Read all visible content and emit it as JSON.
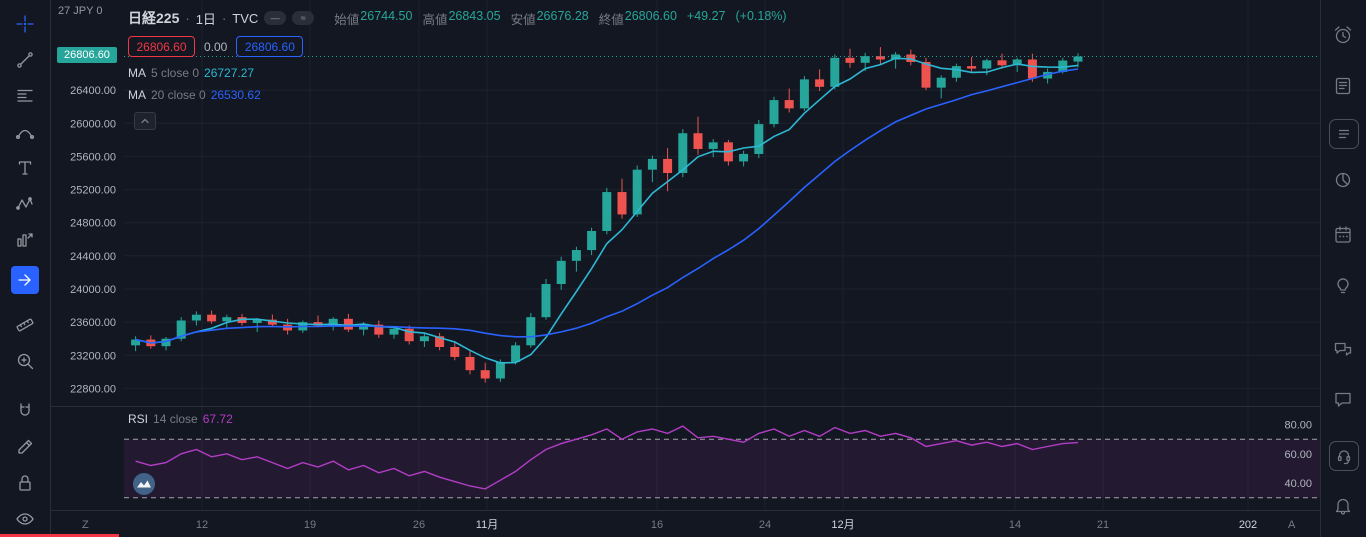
{
  "colors": {
    "background": "#131722",
    "panel_border": "#2a2e39",
    "text": "#d1d4dc",
    "muted": "#787b86",
    "up": "#26a69a",
    "down": "#ef5350",
    "accent_blue": "#2962ff",
    "sell_red": "#f23645",
    "rsi_purple": "#b33dc6"
  },
  "header": {
    "prefix": "27 JPY 0",
    "symbol": "日経225",
    "separator": "·",
    "interval": "1日",
    "exchange": "TVC",
    "pill_dash": "—",
    "pill_wave": "≈",
    "ohlc": {
      "open_label": "始値",
      "open": "26744.50",
      "high_label": "高値",
      "high": "26843.05",
      "low_label": "安値",
      "low": "26676.28",
      "close_label": "終値",
      "close": "26806.60",
      "change": "+49.27",
      "change_pct": "(+0.18%)"
    }
  },
  "trade_panel": {
    "sell_price": "26806.60",
    "spread": "0.00",
    "buy_price": "26806.60"
  },
  "indicators": {
    "ma5": {
      "name": "MA",
      "params": "5 close 0",
      "value": "26727.27"
    },
    "ma20": {
      "name": "MA",
      "params": "20 close 0",
      "value": "26530.62"
    },
    "rsi": {
      "name": "RSI",
      "params": "14 close",
      "value": "67.72"
    }
  },
  "price_axis": {
    "current": "26806.60"
  },
  "corners": {
    "left": "Z",
    "right": "A"
  },
  "chart_data": {
    "type": "candlestick",
    "title": "日経225 1日 TVC",
    "ylim": [
      22600,
      27150
    ],
    "last_close": 26806.6,
    "up_color": "#26a69a",
    "down_color": "#ef5350",
    "grid": true,
    "price_ticks": [
      {
        "value": 26400,
        "label": "26400.00"
      },
      {
        "value": 26000,
        "label": "26000.00"
      },
      {
        "value": 25600,
        "label": "25600.00"
      },
      {
        "value": 25200,
        "label": "25200.00"
      },
      {
        "value": 24800,
        "label": "24800.00"
      },
      {
        "value": 24400,
        "label": "24400.00"
      },
      {
        "value": 24000,
        "label": "24000.00"
      },
      {
        "value": 23600,
        "label": "23600.00"
      },
      {
        "value": 23200,
        "label": "23200.00"
      },
      {
        "value": 22800,
        "label": "22800.00"
      }
    ],
    "time_axis": [
      {
        "text": "12",
        "em": false
      },
      {
        "text": "19",
        "em": false
      },
      {
        "text": "26",
        "em": false
      },
      {
        "text": "11月",
        "em": true
      },
      {
        "text": "16",
        "em": false
      },
      {
        "text": "24",
        "em": false
      },
      {
        "text": "12月",
        "em": true
      },
      {
        "text": "14",
        "em": false
      },
      {
        "text": "21",
        "em": false
      },
      {
        "text": "202",
        "em": true
      }
    ],
    "candles": [
      [
        23320,
        23430,
        23250,
        23390
      ],
      [
        23390,
        23440,
        23280,
        23310
      ],
      [
        23310,
        23420,
        23260,
        23400
      ],
      [
        23400,
        23660,
        23370,
        23620
      ],
      [
        23620,
        23730,
        23560,
        23690
      ],
      [
        23690,
        23740,
        23580,
        23610
      ],
      [
        23610,
        23690,
        23530,
        23660
      ],
      [
        23660,
        23700,
        23560,
        23590
      ],
      [
        23590,
        23650,
        23480,
        23630
      ],
      [
        23630,
        23690,
        23540,
        23570
      ],
      [
        23570,
        23640,
        23450,
        23500
      ],
      [
        23500,
        23620,
        23470,
        23600
      ],
      [
        23600,
        23680,
        23540,
        23560
      ],
      [
        23560,
        23660,
        23500,
        23640
      ],
      [
        23640,
        23700,
        23480,
        23510
      ],
      [
        23510,
        23600,
        23440,
        23570
      ],
      [
        23570,
        23620,
        23410,
        23450
      ],
      [
        23450,
        23550,
        23400,
        23520
      ],
      [
        23520,
        23560,
        23330,
        23370
      ],
      [
        23370,
        23460,
        23300,
        23430
      ],
      [
        23430,
        23470,
        23260,
        23300
      ],
      [
        23300,
        23370,
        23140,
        23180
      ],
      [
        23180,
        23250,
        22970,
        23020
      ],
      [
        23020,
        23110,
        22870,
        22920
      ],
      [
        22920,
        23150,
        22880,
        23120
      ],
      [
        23120,
        23360,
        23090,
        23320
      ],
      [
        23320,
        23710,
        23290,
        23660
      ],
      [
        23660,
        24120,
        23630,
        24060
      ],
      [
        24060,
        24390,
        23990,
        24340
      ],
      [
        24340,
        24510,
        24210,
        24470
      ],
      [
        24470,
        24740,
        24410,
        24700
      ],
      [
        24700,
        25220,
        24660,
        25170
      ],
      [
        25170,
        25330,
        24850,
        24900
      ],
      [
        24900,
        25490,
        24870,
        25440
      ],
      [
        25440,
        25610,
        25290,
        25570
      ],
      [
        25570,
        25700,
        25180,
        25400
      ],
      [
        25400,
        25930,
        25350,
        25880
      ],
      [
        25880,
        26080,
        25620,
        25690
      ],
      [
        25690,
        25810,
        25590,
        25770
      ],
      [
        25770,
        25800,
        25490,
        25540
      ],
      [
        25540,
        25670,
        25480,
        25630
      ],
      [
        25630,
        26040,
        25580,
        25990
      ],
      [
        25990,
        26320,
        25950,
        26280
      ],
      [
        26280,
        26420,
        26130,
        26180
      ],
      [
        26180,
        26570,
        26150,
        26530
      ],
      [
        26530,
        26650,
        26390,
        26440
      ],
      [
        26440,
        26830,
        26410,
        26790
      ],
      [
        26790,
        26900,
        26670,
        26730
      ],
      [
        26730,
        26850,
        26630,
        26810
      ],
      [
        26810,
        26920,
        26710,
        26770
      ],
      [
        26770,
        26860,
        26660,
        26830
      ],
      [
        26830,
        26890,
        26700,
        26740
      ],
      [
        26740,
        26790,
        26400,
        26430
      ],
      [
        26430,
        26580,
        26300,
        26550
      ],
      [
        26550,
        26720,
        26500,
        26690
      ],
      [
        26690,
        26800,
        26620,
        26660
      ],
      [
        26660,
        26780,
        26580,
        26760
      ],
      [
        26760,
        26840,
        26660,
        26700
      ],
      [
        26700,
        26790,
        26620,
        26770
      ],
      [
        26770,
        26840,
        26500,
        26540
      ],
      [
        26540,
        26660,
        26480,
        26620
      ],
      [
        26620,
        26790,
        26600,
        26757.33
      ],
      [
        26744.5,
        26843.05,
        26676.28,
        26806.6
      ]
    ],
    "overlays": [
      {
        "name": "MA5",
        "period": 5,
        "color": "#2db8d4",
        "last_value": 26727.27
      },
      {
        "name": "MA20",
        "period": 20,
        "color": "#2962ff",
        "last_value": 26530.62
      }
    ],
    "rsi": {
      "period": 14,
      "color": "#b33dc6",
      "ylim": [
        25,
        90
      ],
      "bands": [
        70,
        30
      ],
      "band_fill": "rgba(179,61,198,0.10)",
      "last_value": 67.72,
      "ticks": [
        {
          "value": 80,
          "label": "80.00"
        },
        {
          "value": 60,
          "label": "60.00"
        },
        {
          "value": 40,
          "label": "40.00"
        }
      ],
      "values": [
        55,
        52,
        54,
        60,
        63,
        58,
        60,
        56,
        58,
        54,
        50,
        54,
        51,
        55,
        49,
        52,
        47,
        50,
        45,
        48,
        44,
        41,
        38,
        36,
        42,
        48,
        56,
        63,
        67,
        70,
        73,
        77,
        70,
        75,
        77,
        74,
        79,
        71,
        72,
        70,
        68,
        74,
        77,
        72,
        76,
        72,
        78,
        74,
        76,
        72,
        74,
        71,
        65,
        67,
        69,
        66,
        68,
        65,
        67,
        63,
        65,
        67,
        67.72
      ]
    }
  }
}
